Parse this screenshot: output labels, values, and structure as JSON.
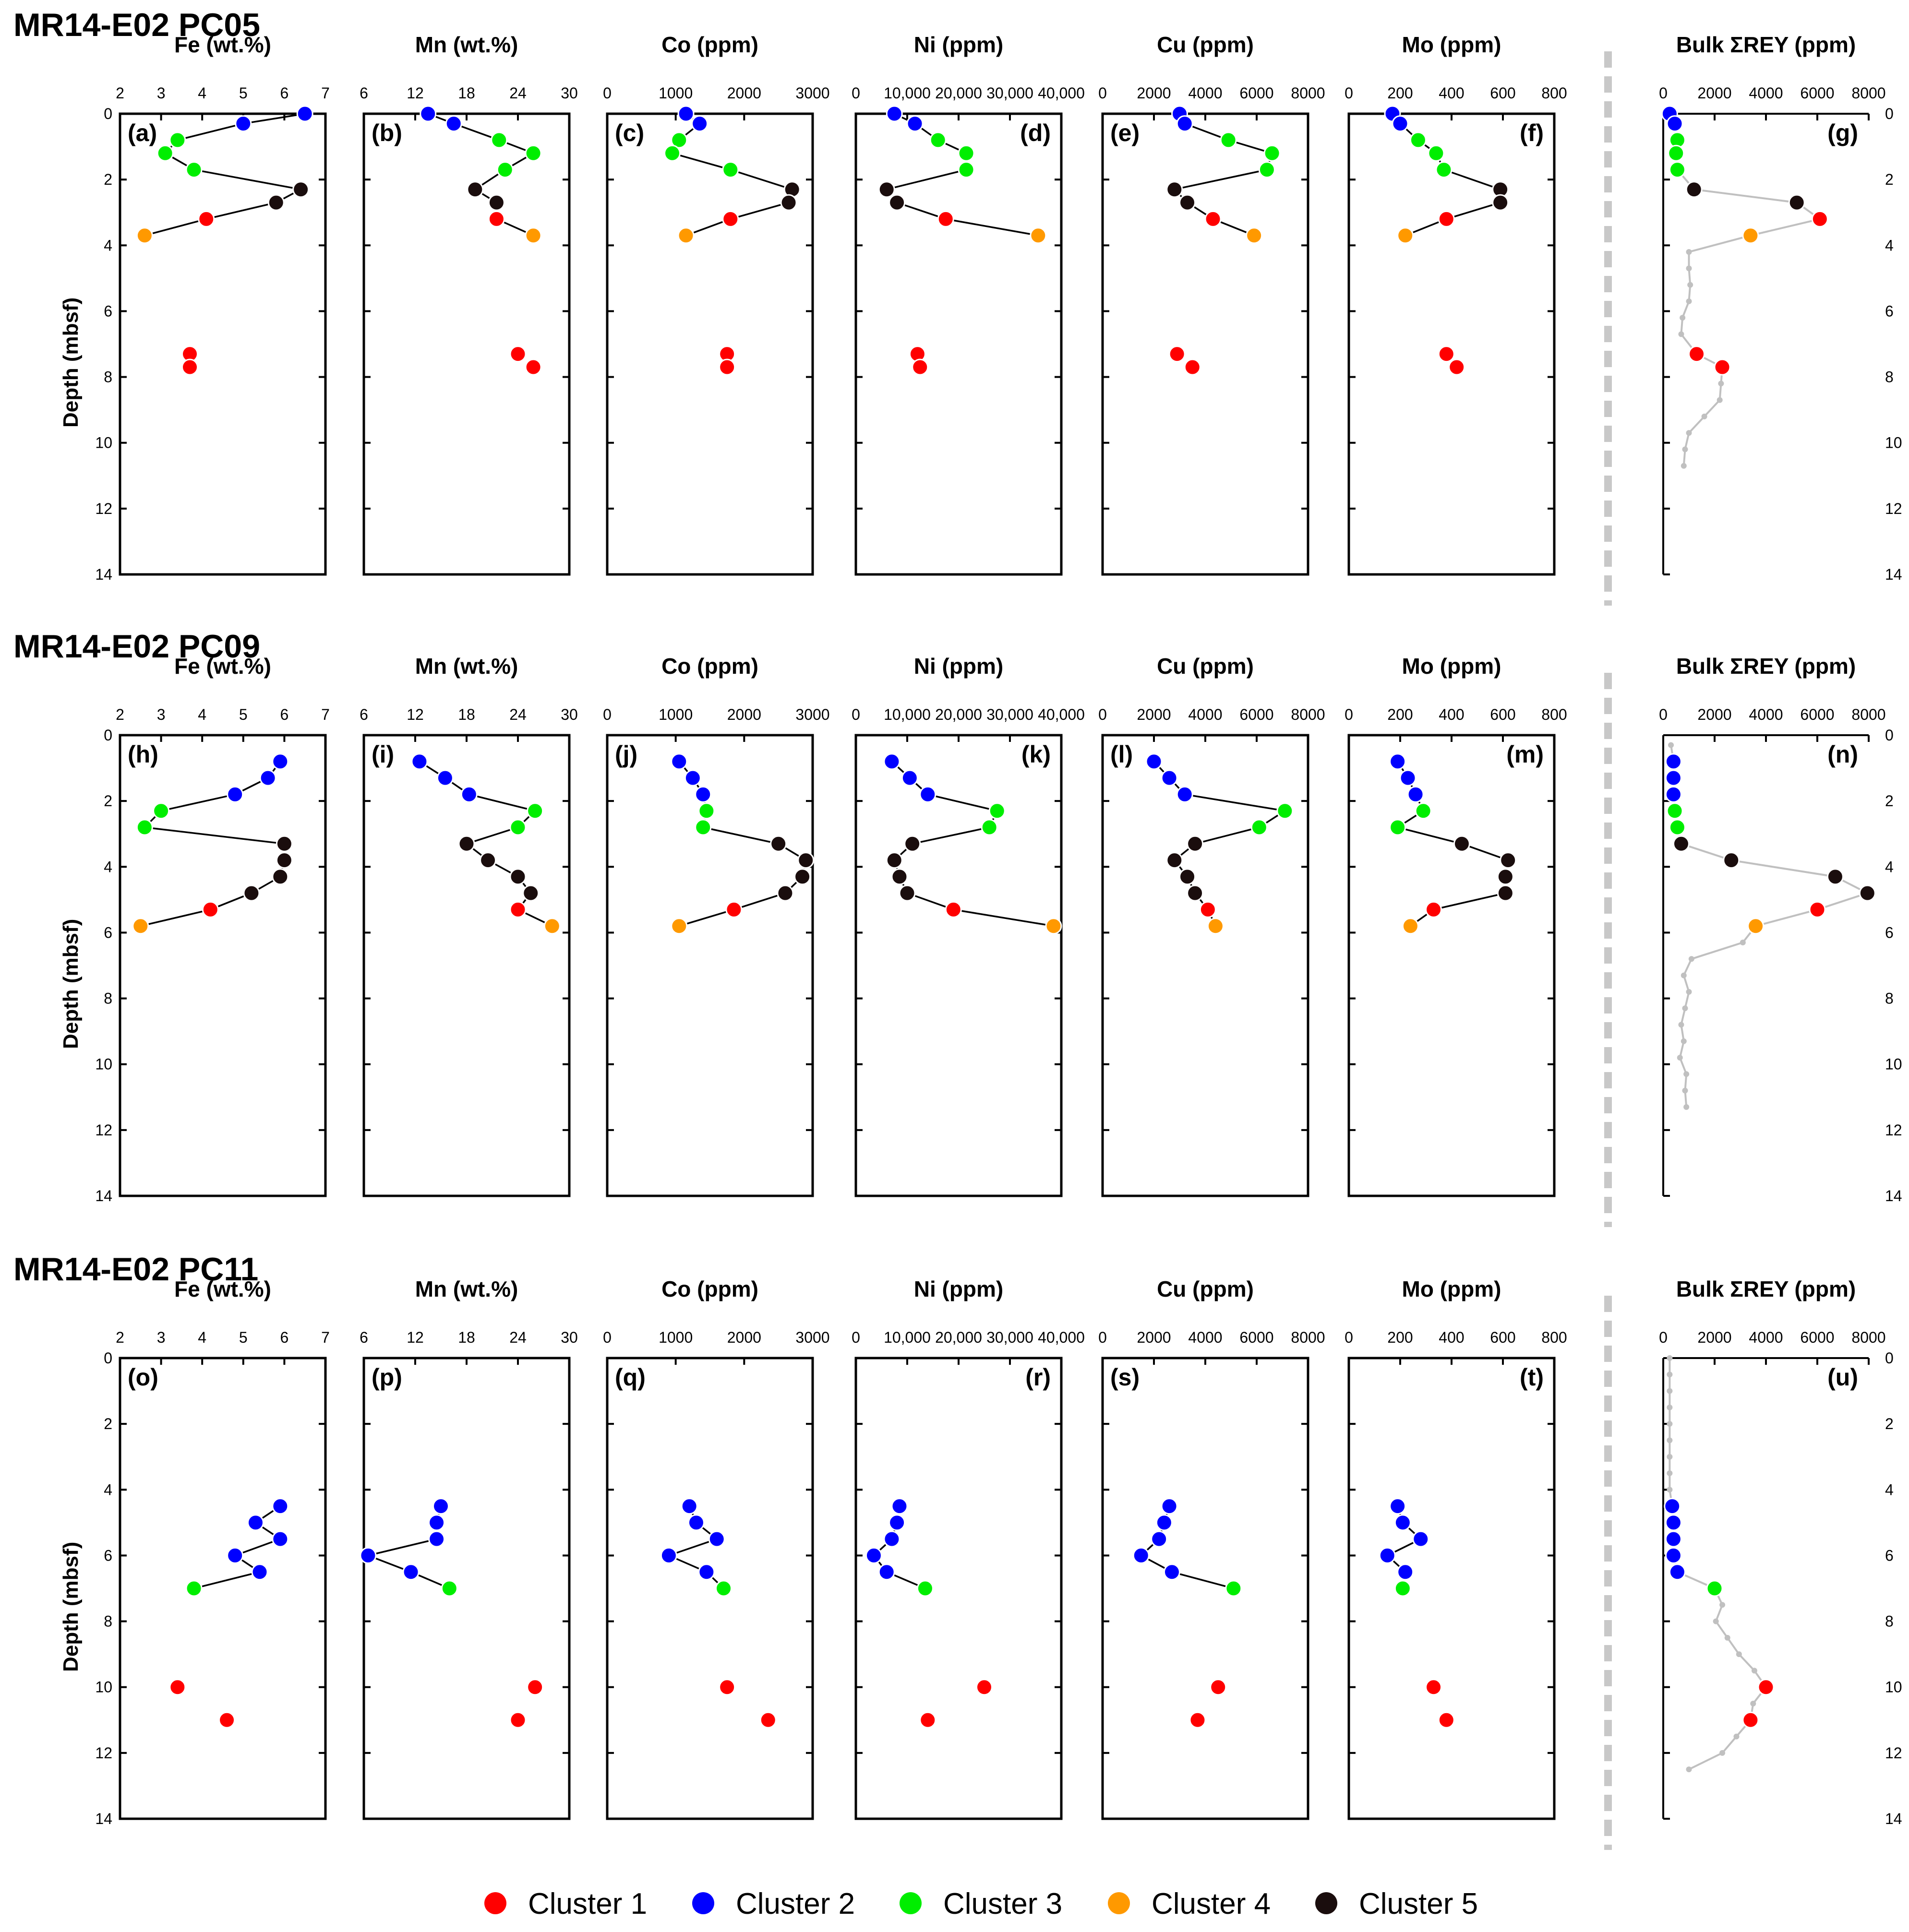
{
  "colors": {
    "cluster1": "#ff0000",
    "cluster2": "#0000ff",
    "cluster3": "#00ee00",
    "cluster4": "#ff9900",
    "cluster5": "#1a0d0d",
    "bulk": "#c0c0c0",
    "separator": "#c8c8c8"
  },
  "legend": [
    {
      "label": "Cluster 1",
      "color": "#ff0000"
    },
    {
      "label": "Cluster 2",
      "color": "#0000ff"
    },
    {
      "label": "Cluster 3",
      "color": "#00ee00"
    },
    {
      "label": "Cluster 4",
      "color": "#ff9900"
    },
    {
      "label": "Cluster 5",
      "color": "#1a0d0d"
    }
  ],
  "chart_data": {
    "type": "scatter",
    "ylabel": "Depth (mbsf)",
    "ylim": [
      0,
      14
    ],
    "yticks": [
      0,
      2,
      4,
      6,
      8,
      10,
      12,
      14
    ],
    "element_axes": [
      {
        "title": "Fe (wt.%)",
        "xlim": [
          2,
          7
        ],
        "ticks": [
          "2",
          "3",
          "4",
          "5",
          "6",
          "7"
        ]
      },
      {
        "title": "Mn (wt.%)",
        "xlim": [
          6,
          30
        ],
        "ticks": [
          "6",
          "12",
          "18",
          "24",
          "30"
        ]
      },
      {
        "title": "Co (ppm)",
        "xlim": [
          0,
          3000
        ],
        "ticks": [
          "0",
          "1000",
          "2000",
          "3000"
        ]
      },
      {
        "title": "Ni (ppm)",
        "xlim": [
          0,
          40000
        ],
        "ticks": [
          "0",
          "10,000",
          "20,000",
          "30,000",
          "40,000"
        ]
      },
      {
        "title": "Cu (ppm)",
        "xlim": [
          0,
          8000
        ],
        "ticks": [
          "0",
          "2000",
          "4000",
          "6000",
          "8000"
        ]
      },
      {
        "title": "Mo (ppm)",
        "xlim": [
          0,
          800
        ],
        "ticks": [
          "0",
          "200",
          "400",
          "600",
          "800"
        ]
      }
    ],
    "bulk_axis": {
      "title": "Bulk ΣREY (ppm)",
      "xlim": [
        0,
        8000
      ],
      "ticks": [
        "0",
        "2000",
        "4000",
        "6000",
        "8000"
      ]
    },
    "cores": [
      {
        "name": "MR14-E02 PC05",
        "panel_labels": [
          "(a)",
          "(b)",
          "(c)",
          "(d)",
          "(e)",
          "(f)",
          "(g)"
        ],
        "depths": [
          0,
          0.3,
          0.8,
          1.2,
          1.7,
          2.3,
          2.7,
          3.2,
          3.7,
          7.3,
          7.7
        ],
        "clusters": [
          2,
          2,
          3,
          3,
          3,
          5,
          5,
          1,
          4,
          1,
          1
        ],
        "connected": 9,
        "values": [
          [
            6.5,
            5.0,
            3.4,
            3.1,
            3.8,
            6.4,
            5.8,
            4.1,
            2.6,
            3.7,
            3.7
          ],
          [
            13.5,
            16.5,
            21.8,
            25.8,
            22.5,
            19.0,
            21.5,
            21.5,
            25.8,
            24.0,
            25.8
          ],
          [
            1150,
            1350,
            1050,
            950,
            1800,
            2700,
            2650,
            1800,
            1150,
            1750,
            1750
          ],
          [
            7500,
            11500,
            16000,
            21500,
            21500,
            6000,
            8000,
            17500,
            35500,
            12000,
            12500
          ],
          [
            3000,
            3200,
            4900,
            6600,
            6400,
            2800,
            3300,
            4300,
            5900,
            2900,
            3500
          ],
          [
            170,
            200,
            270,
            340,
            370,
            590,
            590,
            380,
            220,
            380,
            420
          ]
        ],
        "bulk": {
          "depths": [
            0,
            0.3,
            0.8,
            1.2,
            1.7,
            2.3,
            2.7,
            3.2,
            3.7,
            4.2,
            4.7,
            5.2,
            5.7,
            6.2,
            6.7,
            7.3,
            7.7,
            8.2,
            8.7,
            9.2,
            9.7,
            10.2,
            10.7
          ],
          "values": [
            250,
            450,
            550,
            500,
            550,
            1200,
            5200,
            6100,
            3400,
            1000,
            1000,
            1050,
            1000,
            750,
            700,
            1300,
            2300,
            2250,
            2200,
            1600,
            1000,
            850,
            800
          ],
          "markers": [
            2,
            2,
            3,
            3,
            3,
            5,
            5,
            1,
            4,
            0,
            0,
            0,
            0,
            0,
            0,
            1,
            1,
            0,
            0,
            0,
            0,
            0,
            0
          ]
        }
      },
      {
        "name": "MR14-E02 PC09",
        "panel_labels": [
          "(h)",
          "(i)",
          "(j)",
          "(k)",
          "(l)",
          "(m)",
          "(n)"
        ],
        "depths": [
          0.8,
          1.3,
          1.8,
          2.3,
          2.8,
          3.3,
          3.8,
          4.3,
          4.8,
          5.3,
          5.8
        ],
        "clusters": [
          2,
          2,
          2,
          3,
          3,
          5,
          5,
          5,
          5,
          1,
          4
        ],
        "connected": 11,
        "values": [
          [
            5.9,
            5.6,
            4.8,
            3.0,
            2.6,
            6.0,
            6.0,
            5.9,
            5.2,
            4.2,
            2.5
          ],
          [
            12.5,
            15.5,
            18.3,
            26.0,
            24.0,
            18.0,
            20.5,
            24.0,
            25.5,
            24.0,
            28.0
          ],
          [
            1050,
            1250,
            1400,
            1450,
            1400,
            2500,
            2900,
            2850,
            2600,
            1850,
            1050
          ],
          [
            7000,
            10500,
            14000,
            27500,
            26000,
            11000,
            7500,
            8500,
            10000,
            19000,
            38500
          ],
          [
            2000,
            2600,
            3200,
            7100,
            6100,
            3600,
            2800,
            3300,
            3600,
            4100,
            4400
          ],
          [
            190,
            230,
            260,
            290,
            190,
            440,
            620,
            610,
            610,
            330,
            240
          ]
        ],
        "bulk": {
          "depths": [
            0.3,
            0.8,
            1.3,
            1.8,
            2.3,
            2.8,
            3.3,
            3.8,
            4.3,
            4.8,
            5.3,
            5.8,
            6.3,
            6.8,
            7.3,
            7.8,
            8.3,
            8.8,
            9.3,
            9.8,
            10.3,
            10.8,
            11.3
          ],
          "values": [
            300,
            400,
            400,
            400,
            450,
            550,
            700,
            2650,
            6700,
            7950,
            6000,
            3600,
            3100,
            1100,
            800,
            1000,
            850,
            700,
            800,
            650,
            900,
            850,
            900
          ],
          "markers": [
            0,
            2,
            2,
            2,
            3,
            3,
            5,
            5,
            5,
            5,
            1,
            4,
            0,
            0,
            0,
            0,
            0,
            0,
            0,
            0,
            0,
            0,
            0
          ]
        }
      },
      {
        "name": "MR14-E02 PC11",
        "panel_labels": [
          "(o)",
          "(p)",
          "(q)",
          "(r)",
          "(s)",
          "(t)",
          "(u)"
        ],
        "depths": [
          4.5,
          5.0,
          5.5,
          6.0,
          6.5,
          7.0,
          10.0,
          11.0
        ],
        "clusters": [
          2,
          2,
          2,
          2,
          2,
          3,
          1,
          1
        ],
        "connected": 6,
        "values": [
          [
            5.9,
            5.3,
            5.9,
            4.8,
            5.4,
            3.8,
            3.4,
            4.6
          ],
          [
            15.0,
            14.5,
            14.5,
            6.5,
            11.5,
            16.0,
            26.0,
            24.0
          ],
          [
            1200,
            1300,
            1600,
            900,
            1450,
            1700,
            1750,
            2350
          ],
          [
            8500,
            8000,
            7000,
            3500,
            6000,
            13500,
            25000,
            14000
          ],
          [
            2600,
            2400,
            2200,
            1500,
            2700,
            5100,
            4500,
            3700
          ],
          [
            190,
            210,
            280,
            150,
            220,
            210,
            330,
            380
          ]
        ],
        "bulk": {
          "depths": [
            0.0,
            0.5,
            1.0,
            1.5,
            2.0,
            2.5,
            3.0,
            3.5,
            4.0,
            4.5,
            5.0,
            5.5,
            6.0,
            6.5,
            7.0,
            7.5,
            8.0,
            8.5,
            9.0,
            9.5,
            10.0,
            10.5,
            11.0,
            11.5,
            12.0,
            12.5
          ],
          "values": [
            250,
            250,
            250,
            250,
            250,
            250,
            250,
            250,
            250,
            350,
            400,
            400,
            400,
            550,
            2000,
            2300,
            2050,
            2500,
            2950,
            3550,
            4000,
            3500,
            3400,
            2850,
            2300,
            1000
          ],
          "markers": [
            0,
            0,
            0,
            0,
            0,
            0,
            0,
            0,
            0,
            2,
            2,
            2,
            2,
            2,
            3,
            0,
            0,
            0,
            0,
            0,
            1,
            0,
            1,
            0,
            0,
            0
          ]
        }
      }
    ]
  }
}
